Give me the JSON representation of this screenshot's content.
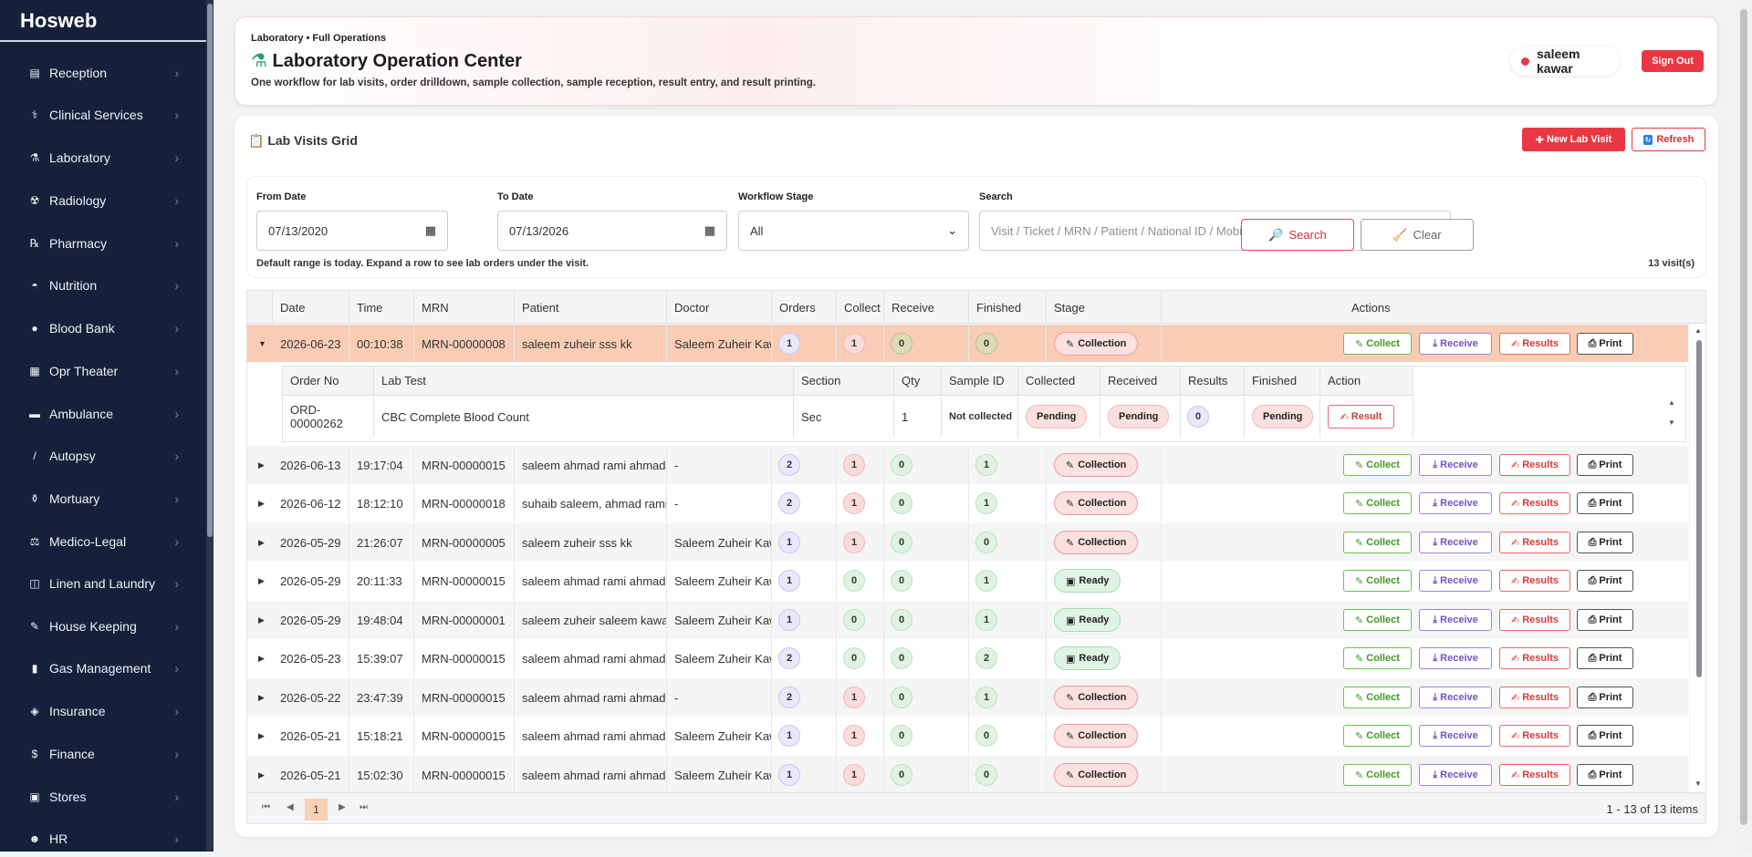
{
  "sidebar": {
    "brand": "Hosweb",
    "items": [
      {
        "label": "Reception",
        "icon": "reception-icon",
        "glyph": "▤"
      },
      {
        "label": "Clinical Services",
        "icon": "stethoscope-icon",
        "glyph": "⚕"
      },
      {
        "label": "Laboratory",
        "icon": "test-tube-icon",
        "glyph": "⚗"
      },
      {
        "label": "Radiology",
        "icon": "radiology-icon",
        "glyph": "☢"
      },
      {
        "label": "Pharmacy",
        "icon": "pill-icon",
        "glyph": "℞"
      },
      {
        "label": "Nutrition",
        "icon": "bowl-icon",
        "glyph": "◓"
      },
      {
        "label": "Blood Bank",
        "icon": "blood-drop-icon",
        "glyph": "●"
      },
      {
        "label": "Opr Theater",
        "icon": "theater-icon",
        "glyph": "▦"
      },
      {
        "label": "Ambulance",
        "icon": "ambulance-icon",
        "glyph": "▬"
      },
      {
        "label": "Autopsy",
        "icon": "scalpel-icon",
        "glyph": "/"
      },
      {
        "label": "Mortuary",
        "icon": "urn-icon",
        "glyph": "⚱"
      },
      {
        "label": "Medico-Legal",
        "icon": "scales-icon",
        "glyph": "⚖"
      },
      {
        "label": "Linen and Laundry",
        "icon": "laundry-icon",
        "glyph": "◫"
      },
      {
        "label": "House Keeping",
        "icon": "broom-icon",
        "glyph": "✎"
      },
      {
        "label": "Gas Management",
        "icon": "gas-cylinder-icon",
        "glyph": "▮"
      },
      {
        "label": "Insurance",
        "icon": "shield-icon",
        "glyph": "◈"
      },
      {
        "label": "Finance",
        "icon": "money-bag-icon",
        "glyph": "$"
      },
      {
        "label": "Stores",
        "icon": "box-icon",
        "glyph": "▣"
      },
      {
        "label": "HR",
        "icon": "people-icon",
        "glyph": "☻"
      }
    ]
  },
  "header": {
    "breadcrumb": "Laboratory • Full Operations",
    "title": "Laboratory Operation Center",
    "description": "One workflow for lab visits, order drilldown, sample collection, sample reception, result entry, and result printing.",
    "user": "saleem kawar",
    "sign_out": "Sign Out"
  },
  "grid": {
    "title": "Lab Visits Grid",
    "new_visit": "New Lab Visit",
    "refresh": "Refresh"
  },
  "filters": {
    "from_label": "From Date",
    "from_value": "07/13/2020",
    "to_label": "To Date",
    "to_value": "07/13/2026",
    "stage_label": "Workflow Stage",
    "stage_value": "All",
    "search_label": "Search",
    "search_placeholder": "Visit / Ticket / MRN / Patient / National ID / Mobile / Order / Test",
    "search_btn": "Search",
    "clear_btn": "Clear",
    "hint": "Default range is today. Expand a row to see lab orders under the visit.",
    "count": "13 visit(s)"
  },
  "table": {
    "columns": [
      "Date",
      "Time",
      "MRN",
      "Patient",
      "Doctor",
      "Orders",
      "Collect",
      "Receive",
      "Finished",
      "Stage",
      "Actions"
    ],
    "action_labels": {
      "collect": "Collect",
      "receive": "Receive",
      "results": "Results",
      "print": "Print"
    },
    "rows": [
      {
        "date": "2026-06-23",
        "time": "00:10:38",
        "mrn": "MRN-00000008",
        "patient": "saleem zuheir sss kk",
        "doctor": "Saleem Zuheir Kawar",
        "orders": "1",
        "collect": "1",
        "receive": "0",
        "finished": "0",
        "stage": "Collection"
      },
      {
        "date": "2026-06-13",
        "time": "19:17:04",
        "mrn": "MRN-00000015",
        "patient": "saleem ahmad rami ahmad",
        "doctor": "-",
        "orders": "2",
        "collect": "1",
        "receive": "0",
        "finished": "1",
        "stage": "Collection"
      },
      {
        "date": "2026-06-12",
        "time": "18:12:10",
        "mrn": "MRN-00000018",
        "patient": "suhaib saleem, ahmad ramiz",
        "doctor": "-",
        "orders": "2",
        "collect": "1",
        "receive": "0",
        "finished": "1",
        "stage": "Collection"
      },
      {
        "date": "2026-05-29",
        "time": "21:26:07",
        "mrn": "MRN-00000005",
        "patient": "saleem zuheir sss kk",
        "doctor": "Saleem Zuheir Kawar",
        "orders": "1",
        "collect": "1",
        "receive": "0",
        "finished": "0",
        "stage": "Collection"
      },
      {
        "date": "2026-05-29",
        "time": "20:11:33",
        "mrn": "MRN-00000015",
        "patient": "saleem ahmad rami ahmad",
        "doctor": "Saleem Zuheir Kawar",
        "orders": "1",
        "collect": "0",
        "receive": "0",
        "finished": "1",
        "stage": "Ready"
      },
      {
        "date": "2026-05-29",
        "time": "19:48:04",
        "mrn": "MRN-00000001",
        "patient": "saleem zuheir saleem kawar",
        "doctor": "Saleem Zuheir Kawar",
        "orders": "1",
        "collect": "0",
        "receive": "0",
        "finished": "1",
        "stage": "Ready"
      },
      {
        "date": "2026-05-23",
        "time": "15:39:07",
        "mrn": "MRN-00000015",
        "patient": "saleem ahmad rami ahmad",
        "doctor": "Saleem Zuheir Kawar",
        "orders": "2",
        "collect": "0",
        "receive": "0",
        "finished": "2",
        "stage": "Ready"
      },
      {
        "date": "2026-05-22",
        "time": "23:47:39",
        "mrn": "MRN-00000015",
        "patient": "saleem ahmad rami ahmad",
        "doctor": "-",
        "orders": "2",
        "collect": "1",
        "receive": "0",
        "finished": "1",
        "stage": "Collection"
      },
      {
        "date": "2026-05-21",
        "time": "15:18:21",
        "mrn": "MRN-00000015",
        "patient": "saleem ahmad rami ahmad",
        "doctor": "Saleem Zuheir Kawar",
        "orders": "1",
        "collect": "1",
        "receive": "0",
        "finished": "0",
        "stage": "Collection"
      },
      {
        "date": "2026-05-21",
        "time": "15:02:30",
        "mrn": "MRN-00000015",
        "patient": "saleem ahmad rami ahmad",
        "doctor": "Saleem Zuheir Kawar",
        "orders": "1",
        "collect": "1",
        "receive": "0",
        "finished": "0",
        "stage": "Collection"
      }
    ],
    "detail": {
      "columns": [
        "Order No",
        "Lab Test",
        "Section",
        "Qty",
        "Sample ID",
        "Collected",
        "Received",
        "Results",
        "Finished",
        "Action"
      ],
      "row": {
        "order_no": "ORD-00000262",
        "test": "CBC Complete Blood Count",
        "section": "Sec",
        "qty": "1",
        "sample_id": "Not collected",
        "collected": "Pending",
        "received": "Pending",
        "results": "0",
        "finished": "Pending",
        "action": "Result"
      }
    },
    "pager": {
      "page": "1",
      "info": "1 - 13 of 13 items"
    }
  }
}
